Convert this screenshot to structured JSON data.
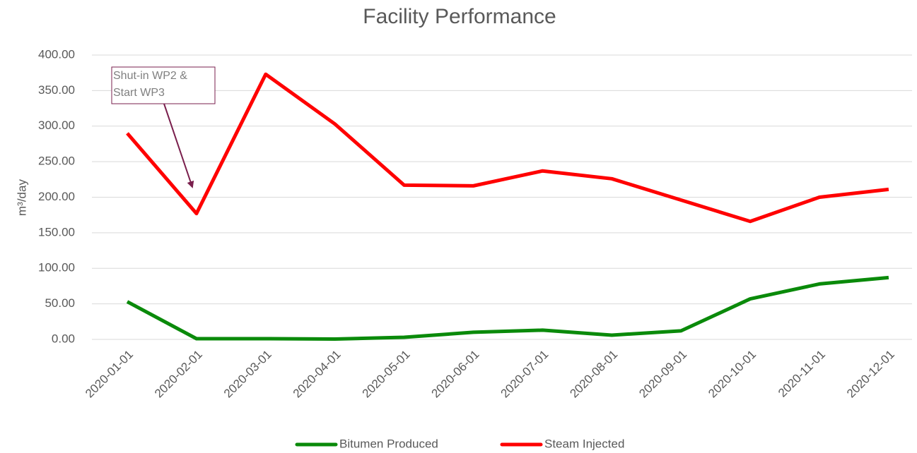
{
  "chart_data": {
    "type": "line",
    "title": "Facility Performance",
    "y_label": "m³/day",
    "categories": [
      "2020-01-01",
      "2020-02-01",
      "2020-03-01",
      "2020-04-01",
      "2020-05-01",
      "2020-06-01",
      "2020-07-01",
      "2020-08-01",
      "2020-09-01",
      "2020-10-01",
      "2020-11-01",
      "2020-12-01"
    ],
    "series": [
      {
        "name": "Bitumen Produced",
        "color": "#0a8a0a",
        "values": [
          53,
          1,
          1,
          0.5,
          3,
          10,
          13,
          6,
          12,
          57,
          78,
          87
        ]
      },
      {
        "name": "Steam Injected",
        "color": "#ff0000",
        "values": [
          290,
          177,
          373,
          303,
          217,
          216,
          237,
          226,
          196,
          166,
          200,
          211
        ]
      }
    ],
    "ylim": [
      0,
      400
    ],
    "yticks": [
      {
        "value": 0,
        "label": "0.00"
      },
      {
        "value": 50,
        "label": "50.00"
      },
      {
        "value": 100,
        "label": "100.00"
      },
      {
        "value": 150,
        "label": "150.00"
      },
      {
        "value": 200,
        "label": "200.00"
      },
      {
        "value": 250,
        "label": "250.00"
      },
      {
        "value": 300,
        "label": "300.00"
      },
      {
        "value": 350,
        "label": "350.00"
      },
      {
        "value": 400,
        "label": "400.00"
      }
    ],
    "grid": true,
    "legend": "bottom",
    "annotation": [
      "Shut-in WP2 &",
      "Start WP3"
    ]
  }
}
